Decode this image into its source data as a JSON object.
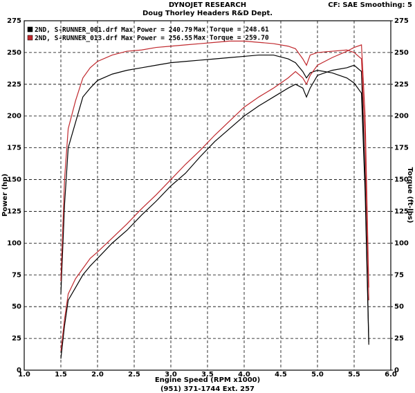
{
  "chart_data": {
    "type": "line",
    "title": "DYNOJET RESEARCH",
    "subtitle": "Doug Thorley Headers R&D Dept.",
    "settings_text": "CF: SAE  Smoothing: 5",
    "x_label": "Engine Speed (RPM x1000)",
    "y_label": "Power (hp)",
    "y2_label": "Torque (ft-lbs)",
    "footer": "(951) 371-1744 Ext. 257",
    "grid": true,
    "xlim": [
      1.0,
      6.0
    ],
    "xticks": [
      {
        "value": 1.0,
        "label": "1.0"
      },
      {
        "value": 1.5,
        "label": "1.5"
      },
      {
        "value": 2.0,
        "label": "2.0"
      },
      {
        "value": 2.5,
        "label": "2.5"
      },
      {
        "value": 3.0,
        "label": "3.0"
      },
      {
        "value": 3.5,
        "label": "3.5"
      },
      {
        "value": 4.0,
        "label": "4.0"
      },
      {
        "value": 4.5,
        "label": "4.5"
      },
      {
        "value": 5.0,
        "label": "5.0"
      },
      {
        "value": 5.5,
        "label": "5.5"
      },
      {
        "value": 6.0,
        "label": "6.0"
      }
    ],
    "ylim": [
      0,
      275
    ],
    "yticks": [
      0,
      25,
      50,
      75,
      100,
      125,
      150,
      175,
      200,
      225,
      250,
      275
    ],
    "y2lim": [
      0,
      275
    ],
    "y2ticks": [
      0,
      25,
      50,
      75,
      100,
      125,
      150,
      175,
      200,
      225,
      250,
      275
    ],
    "x": [
      1.5,
      1.55,
      1.6,
      1.7,
      1.8,
      1.9,
      2.0,
      2.2,
      2.4,
      2.6,
      2.8,
      3.0,
      3.2,
      3.4,
      3.6,
      3.8,
      4.0,
      4.2,
      4.4,
      4.6,
      4.7,
      4.8,
      4.85,
      4.9,
      5.0,
      5.2,
      5.4,
      5.5,
      5.6,
      5.65,
      5.7
    ],
    "series": [
      {
        "name": "2ND, S-RUNNER_001.drf",
        "color": "#000000",
        "max_power_label": "Max Power = 240.79",
        "max_torque_label": "Max Torque = 248.61",
        "power": [
          9,
          35,
          55,
          65,
          75,
          82,
          88,
          100,
          110,
          122,
          133,
          145,
          155,
          168,
          180,
          190,
          200,
          208,
          215,
          222,
          225,
          222,
          215,
          222,
          232,
          236,
          238,
          240,
          235,
          150,
          22
        ],
        "torque": [
          60,
          130,
          175,
          195,
          215,
          222,
          228,
          233,
          236,
          238,
          240,
          242,
          243,
          244,
          245,
          246,
          247,
          248,
          248,
          245,
          242,
          235,
          230,
          234,
          236,
          234,
          230,
          226,
          218,
          140,
          20
        ]
      },
      {
        "name": "2ND, S-RUNNER_013.drf",
        "color": "#c0282d",
        "max_power_label": "Max Power = 256.55",
        "max_torque_label": "Max Torque = 259.70",
        "power": [
          15,
          40,
          60,
          72,
          80,
          88,
          93,
          104,
          115,
          127,
          138,
          150,
          162,
          173,
          185,
          196,
          207,
          215,
          222,
          230,
          235,
          230,
          225,
          232,
          240,
          246,
          251,
          254,
          256,
          200,
          65
        ],
        "torque": [
          70,
          150,
          190,
          212,
          230,
          238,
          243,
          248,
          251,
          252,
          254,
          255,
          256,
          257,
          258,
          259,
          259,
          258,
          257,
          255,
          253,
          245,
          240,
          248,
          250,
          251,
          252,
          250,
          245,
          180,
          55
        ]
      }
    ]
  }
}
